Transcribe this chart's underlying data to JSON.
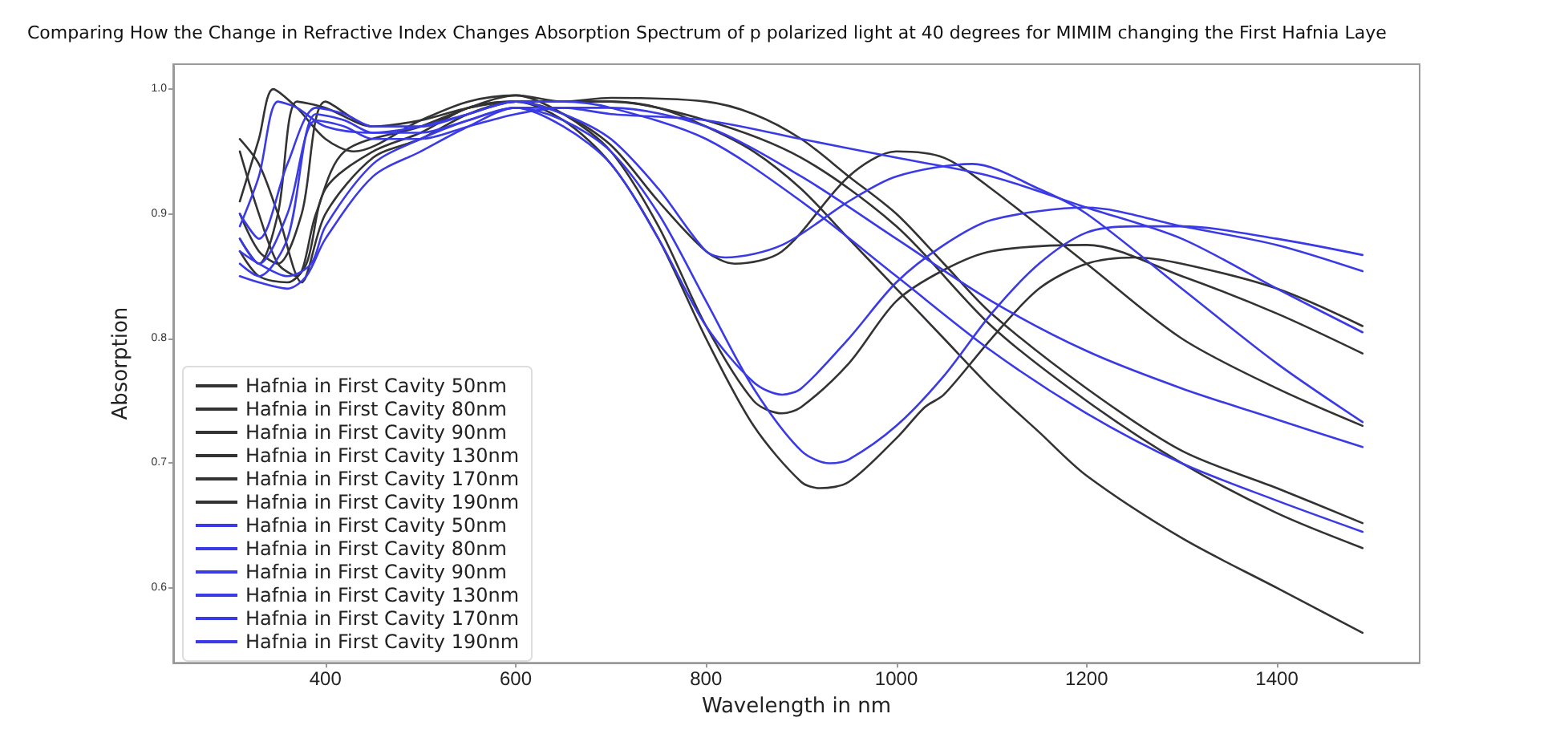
{
  "chart_data": {
    "type": "line",
    "title": "Comparing How the Change in Refractive Index Changes Absorption Spectrum of p polarized light at 40 degrees for MIMIM changing the First Hafnia Laye",
    "xlabel": "Wavelength in nm",
    "ylabel": "Absorption",
    "xlim": [
      240,
      1550
    ],
    "ylim": [
      0.54,
      1.02
    ],
    "xticks": [
      400,
      600,
      800,
      1000,
      1200,
      1400
    ],
    "yticks": [
      0.6,
      0.7,
      0.8,
      0.9,
      {
        "value": 1,
        "label": "1.0"
      }
    ],
    "grid": false,
    "legend": "bottom left",
    "marker": "none",
    "line_style": "solid",
    "series": [
      {
        "name": "Hafnia in First Cavity 50nm",
        "color": "#333333",
        "x": [
          310,
          330,
          345,
          370,
          400,
          430,
          500,
          550,
          600,
          650,
          700,
          750,
          800,
          850,
          900,
          950,
          1000,
          1050,
          1100,
          1150,
          1200,
          1300,
          1400,
          1490
        ],
        "values": [
          0.91,
          0.96,
          1.0,
          0.985,
          0.96,
          0.95,
          0.975,
          0.99,
          0.995,
          0.99,
          0.99,
          0.985,
          0.97,
          0.95,
          0.92,
          0.88,
          0.84,
          0.8,
          0.76,
          0.725,
          0.69,
          0.64,
          0.6,
          0.564
        ]
      },
      {
        "name": "Hafnia in First Cavity 80nm",
        "color": "#333333",
        "x": [
          310,
          330,
          360,
          380,
          400,
          450,
          500,
          550,
          600,
          650,
          700,
          750,
          800,
          850,
          900,
          920,
          950,
          1000,
          1030,
          1050,
          1100,
          1150,
          1200,
          1250,
          1300,
          1400,
          1490
        ],
        "values": [
          0.87,
          0.85,
          0.845,
          0.86,
          0.92,
          0.95,
          0.965,
          0.985,
          0.99,
          0.975,
          0.94,
          0.88,
          0.8,
          0.73,
          0.685,
          0.68,
          0.685,
          0.72,
          0.745,
          0.755,
          0.8,
          0.84,
          0.86,
          0.865,
          0.86,
          0.84,
          0.81
        ]
      },
      {
        "name": "Hafnia in First Cavity 90nm",
        "color": "#333333",
        "x": [
          310,
          330,
          350,
          370,
          390,
          420,
          500,
          550,
          600,
          650,
          700,
          750,
          800,
          850,
          880,
          900,
          950,
          1000,
          1050,
          1100,
          1200,
          1300,
          1400,
          1490
        ],
        "values": [
          0.95,
          0.9,
          0.86,
          0.85,
          0.9,
          0.95,
          0.97,
          0.985,
          0.995,
          0.98,
          0.95,
          0.89,
          0.81,
          0.75,
          0.74,
          0.745,
          0.78,
          0.83,
          0.855,
          0.87,
          0.875,
          0.85,
          0.82,
          0.788
        ]
      },
      {
        "name": "Hafnia in First Cavity 130nm",
        "color": "#333333",
        "x": [
          310,
          330,
          350,
          375,
          400,
          450,
          500,
          550,
          600,
          650,
          700,
          750,
          800,
          830,
          880,
          950,
          1000,
          1050,
          1100,
          1200,
          1300,
          1400,
          1490
        ],
        "values": [
          0.96,
          0.94,
          0.9,
          0.845,
          0.9,
          0.945,
          0.96,
          0.98,
          0.99,
          0.98,
          0.955,
          0.91,
          0.87,
          0.86,
          0.87,
          0.93,
          0.95,
          0.945,
          0.92,
          0.86,
          0.8,
          0.76,
          0.73
        ]
      },
      {
        "name": "Hafnia in First Cavity 170nm",
        "color": "#333333",
        "x": [
          310,
          330,
          350,
          375,
          400,
          450,
          500,
          550,
          600,
          650,
          700,
          800,
          850,
          900,
          950,
          1000,
          1050,
          1100,
          1200,
          1300,
          1400,
          1490
        ],
        "values": [
          0.9,
          0.87,
          0.86,
          0.9,
          0.99,
          0.97,
          0.97,
          0.985,
          0.99,
          0.99,
          0.993,
          0.99,
          0.98,
          0.96,
          0.93,
          0.9,
          0.86,
          0.82,
          0.76,
          0.71,
          0.68,
          0.652
        ]
      },
      {
        "name": "Hafnia in First Cavity 190nm",
        "color": "#333333",
        "x": [
          310,
          330,
          350,
          370,
          400,
          450,
          500,
          550,
          600,
          650,
          700,
          800,
          900,
          1000,
          1100,
          1200,
          1300,
          1400,
          1490
        ],
        "values": [
          0.88,
          0.86,
          0.9,
          0.99,
          0.985,
          0.97,
          0.975,
          0.985,
          0.99,
          0.99,
          0.99,
          0.975,
          0.945,
          0.89,
          0.81,
          0.75,
          0.7,
          0.66,
          0.632
        ]
      },
      {
        "name": "Hafnia in First Cavity 50nm",
        "color": "#3a3ae6",
        "x": [
          310,
          330,
          360,
          380,
          400,
          450,
          500,
          550,
          600,
          650,
          700,
          750,
          800,
          850,
          900,
          930,
          950,
          1000,
          1050,
          1100,
          1150,
          1200,
          1250,
          1300,
          1400,
          1490
        ],
        "values": [
          0.85,
          0.845,
          0.84,
          0.85,
          0.88,
          0.93,
          0.95,
          0.97,
          0.985,
          0.975,
          0.95,
          0.9,
          0.83,
          0.76,
          0.71,
          0.7,
          0.703,
          0.73,
          0.77,
          0.82,
          0.86,
          0.885,
          0.89,
          0.89,
          0.88,
          0.867
        ]
      },
      {
        "name": "Hafnia in First Cavity 80nm",
        "color": "#3a3ae6",
        "x": [
          310,
          330,
          360,
          385,
          400,
          450,
          500,
          550,
          600,
          650,
          700,
          750,
          800,
          850,
          880,
          900,
          950,
          1000,
          1050,
          1100,
          1200,
          1300,
          1400,
          1490
        ],
        "values": [
          0.87,
          0.86,
          0.85,
          0.86,
          0.89,
          0.94,
          0.96,
          0.975,
          0.985,
          0.97,
          0.94,
          0.88,
          0.81,
          0.765,
          0.755,
          0.76,
          0.8,
          0.845,
          0.875,
          0.895,
          0.905,
          0.89,
          0.875,
          0.854
        ]
      },
      {
        "name": "Hafnia in First Cavity 90nm",
        "color": "#3a3ae6",
        "x": [
          310,
          330,
          350,
          370,
          400,
          450,
          500,
          550,
          600,
          650,
          700,
          750,
          800,
          820,
          880,
          950,
          1000,
          1080,
          1150,
          1200,
          1300,
          1400,
          1490
        ],
        "values": [
          0.89,
          0.93,
          0.99,
          0.985,
          0.97,
          0.965,
          0.97,
          0.98,
          0.99,
          0.98,
          0.96,
          0.92,
          0.87,
          0.865,
          0.875,
          0.91,
          0.93,
          0.94,
          0.92,
          0.9,
          0.84,
          0.78,
          0.733
        ]
      },
      {
        "name": "Hafnia in First Cavity 130nm",
        "color": "#3a3ae6",
        "x": [
          310,
          330,
          360,
          390,
          420,
          450,
          500,
          550,
          600,
          650,
          700,
          800,
          900,
          1000,
          1100,
          1200,
          1300,
          1400,
          1490
        ],
        "values": [
          0.86,
          0.85,
          0.88,
          0.98,
          0.975,
          0.965,
          0.965,
          0.975,
          0.985,
          0.985,
          0.98,
          0.975,
          0.96,
          0.945,
          0.93,
          0.905,
          0.88,
          0.84,
          0.805
        ]
      },
      {
        "name": "Hafnia in First Cavity 170nm",
        "color": "#3a3ae6",
        "x": [
          310,
          330,
          360,
          390,
          420,
          450,
          500,
          550,
          600,
          650,
          700,
          800,
          900,
          1000,
          1100,
          1200,
          1300,
          1400,
          1490
        ],
        "values": [
          0.88,
          0.86,
          0.9,
          0.975,
          0.97,
          0.96,
          0.96,
          0.97,
          0.98,
          0.985,
          0.985,
          0.97,
          0.93,
          0.88,
          0.83,
          0.79,
          0.76,
          0.735,
          0.713
        ]
      },
      {
        "name": "Hafnia in First Cavity 190nm",
        "color": "#3a3ae6",
        "x": [
          310,
          330,
          360,
          390,
          420,
          450,
          500,
          550,
          600,
          650,
          700,
          800,
          900,
          1000,
          1100,
          1200,
          1300,
          1400,
          1490
        ],
        "values": [
          0.9,
          0.88,
          0.94,
          0.985,
          0.98,
          0.97,
          0.97,
          0.98,
          0.99,
          0.99,
          0.985,
          0.96,
          0.91,
          0.85,
          0.79,
          0.74,
          0.7,
          0.67,
          0.645
        ]
      }
    ]
  }
}
